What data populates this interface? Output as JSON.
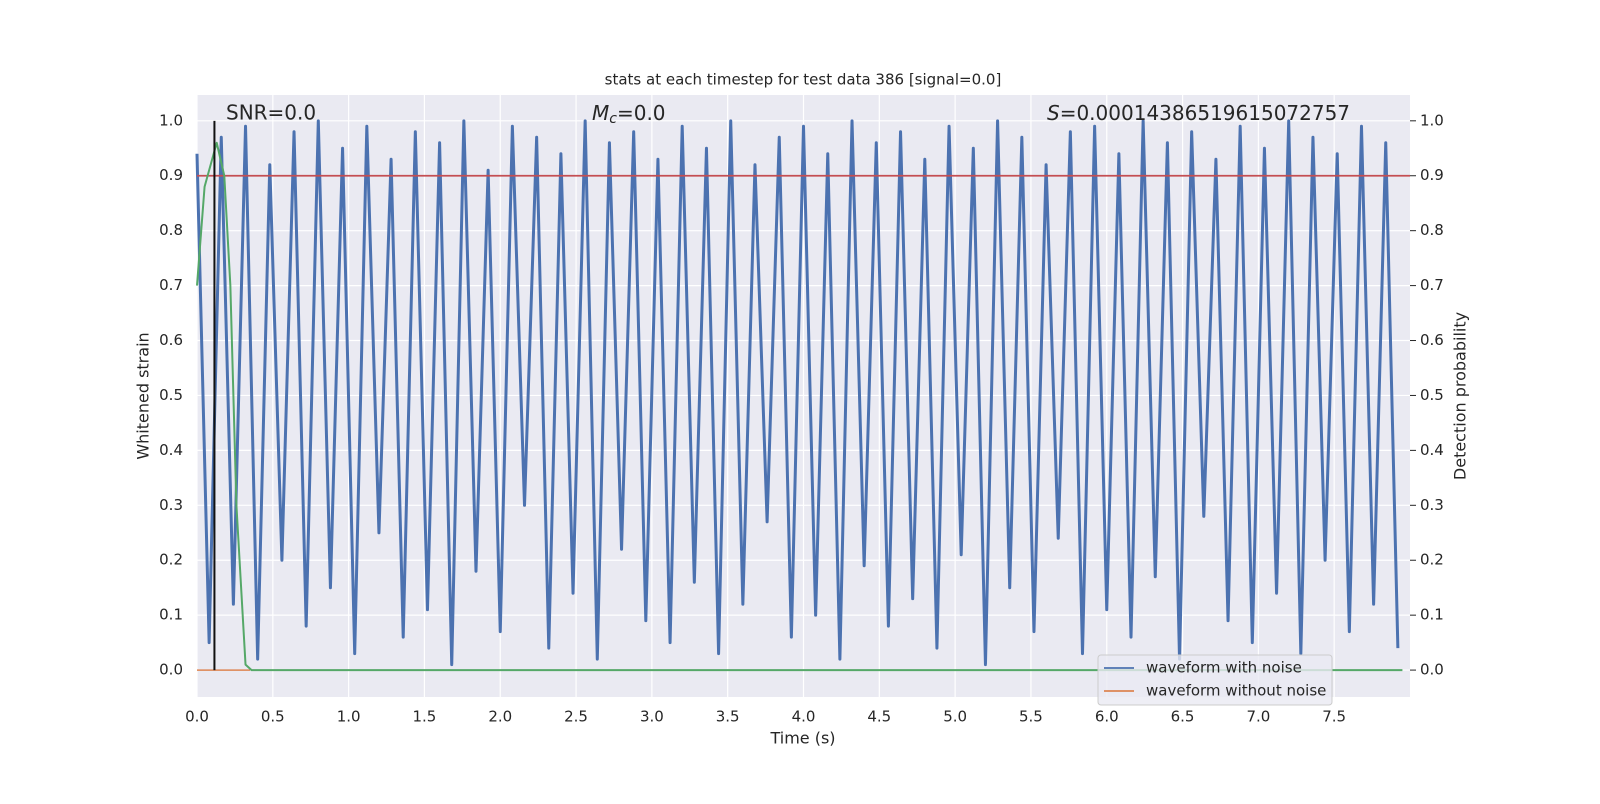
{
  "chart_data": {
    "type": "line",
    "title": "stats at each timestep for test data 386 [signal=0.0]",
    "xlabel": "Time (s)",
    "ylabel": "Whitened strain",
    "y2label": "Detection probability",
    "annotations": {
      "snr": "SNR=0.0",
      "mc": {
        "symbol": "M",
        "subscript": "c",
        "text": "=0.0"
      },
      "s": {
        "symbol": "S",
        "text": "=0.00014386519615072757"
      }
    },
    "xlim": [
      0,
      8.0
    ],
    "ylim": [
      -0.049,
      1.047
    ],
    "y2lim": [
      -0.049,
      1.047
    ],
    "xticks": [
      {
        "value": 0,
        "label": "0.0"
      },
      0.5,
      {
        "value": 1,
        "label": "1.0"
      },
      1.5,
      {
        "value": 2,
        "label": "2.0"
      },
      2.5,
      {
        "value": 3,
        "label": "3.0"
      },
      3.5,
      {
        "value": 4,
        "label": "4.0"
      },
      4.5,
      {
        "value": 5,
        "label": "5.0"
      },
      5.5,
      {
        "value": 6,
        "label": "6.0"
      },
      6.5,
      {
        "value": 7,
        "label": "7.0"
      },
      7.5
    ],
    "yticks": [
      {
        "value": 0,
        "label": "0.0"
      },
      0.1,
      0.2,
      0.3,
      0.4,
      0.5,
      0.6,
      0.7,
      0.8,
      0.9,
      {
        "value": 1,
        "label": "1.0"
      }
    ],
    "y2ticks": [
      {
        "value": 0,
        "label": "0.0"
      },
      0.1,
      0.2,
      0.3,
      0.4,
      0.5,
      0.6,
      0.7,
      0.8,
      0.9,
      {
        "value": 1,
        "label": "1.0"
      }
    ],
    "grid": true,
    "legend": "lower right",
    "series": [
      {
        "name": "waveform with noise",
        "color": "#4c72b0",
        "x": [
          0,
          0.08,
          0.16,
          0.24,
          0.32,
          0.4,
          0.48,
          0.56,
          0.64,
          0.72,
          0.8,
          0.88,
          0.96,
          1.04,
          1.12,
          1.2,
          1.28,
          1.36,
          1.44,
          1.52,
          1.6,
          1.68,
          1.76,
          1.84,
          1.92,
          2.0,
          2.08,
          2.16,
          2.24,
          2.32,
          2.4,
          2.48,
          2.56,
          2.64,
          2.72,
          2.8,
          2.88,
          2.96,
          3.04,
          3.12,
          3.2,
          3.28,
          3.36,
          3.44,
          3.52,
          3.6,
          3.68,
          3.76,
          3.84,
          3.92,
          4.0,
          4.08,
          4.16,
          4.24,
          4.32,
          4.4,
          4.48,
          4.56,
          4.64,
          4.72,
          4.8,
          4.88,
          4.96,
          5.04,
          5.12,
          5.2,
          5.28,
          5.36,
          5.44,
          5.52,
          5.6,
          5.68,
          5.76,
          5.84,
          5.92,
          6.0,
          6.08,
          6.16,
          6.24,
          6.32,
          6.4,
          6.48,
          6.56,
          6.64,
          6.72,
          6.8,
          6.88,
          6.96,
          7.04,
          7.12,
          7.2,
          7.28,
          7.36,
          7.44,
          7.52,
          7.6,
          7.68,
          7.76,
          7.84,
          7.92
        ],
        "values": [
          0.94,
          0.05,
          0.97,
          0.12,
          0.99,
          0.02,
          0.92,
          0.2,
          0.98,
          0.08,
          1.0,
          0.15,
          0.95,
          0.03,
          0.99,
          0.25,
          0.93,
          0.06,
          0.98,
          0.11,
          0.96,
          0.01,
          1.0,
          0.18,
          0.91,
          0.07,
          0.99,
          0.3,
          0.97,
          0.04,
          0.94,
          0.14,
          1.0,
          0.02,
          0.96,
          0.22,
          0.98,
          0.09,
          0.93,
          0.05,
          0.99,
          0.16,
          0.95,
          0.03,
          1.0,
          0.12,
          0.92,
          0.27,
          0.97,
          0.06,
          0.99,
          0.1,
          0.94,
          0.02,
          1.0,
          0.19,
          0.96,
          0.08,
          0.98,
          0.13,
          0.93,
          0.04,
          0.99,
          0.21,
          0.95,
          0.01,
          1.0,
          0.15,
          0.97,
          0.07,
          0.92,
          0.24,
          0.98,
          0.03,
          0.99,
          0.11,
          0.94,
          0.06,
          1.0,
          0.17,
          0.96,
          0.02,
          0.98,
          0.28,
          0.93,
          0.09,
          0.99,
          0.05,
          0.95,
          0.14,
          1.0,
          0.03,
          0.97,
          0.2,
          0.94,
          0.07,
          0.99,
          0.12,
          0.96,
          0.04
        ]
      },
      {
        "name": "waveform without noise",
        "color": "#dd8452",
        "x": [
          0,
          0.35
        ],
        "values": [
          0,
          0
        ]
      }
    ],
    "probability": {
      "color": "#55a868",
      "axis": "y2",
      "x": [
        0,
        0.05,
        0.1,
        0.13,
        0.18,
        0.22,
        0.26,
        0.32,
        0.36,
        7.95
      ],
      "values": [
        0.7,
        0.88,
        0.93,
        0.96,
        0.9,
        0.7,
        0.3,
        0.01,
        0,
        0
      ]
    },
    "threshold": {
      "value": 0.9,
      "color": "#c44e52",
      "axis": "y2"
    },
    "vline": {
      "x": 0.115,
      "ymin": 0,
      "ymax": 1,
      "color": "#111111"
    }
  }
}
